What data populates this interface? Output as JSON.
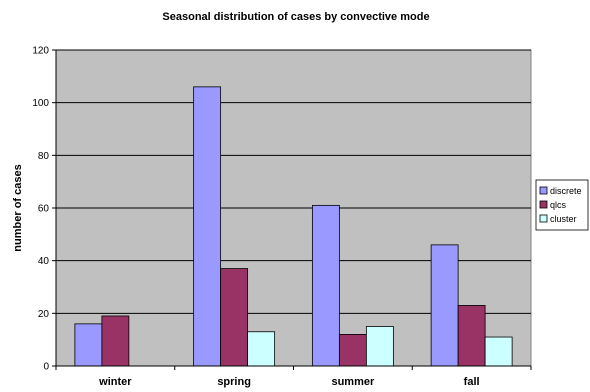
{
  "chart_data": {
    "type": "bar",
    "title": "Seasonal distribution of cases by convective mode",
    "xlabel": "",
    "ylabel": "number of cases",
    "categories": [
      "winter",
      "spring",
      "summer",
      "fall"
    ],
    "series": [
      {
        "name": "discrete",
        "values": [
          16,
          106,
          61,
          46
        ],
        "color": "#9999ff"
      },
      {
        "name": "qlcs",
        "values": [
          19,
          37,
          12,
          23
        ],
        "color": "#993366"
      },
      {
        "name": "cluster",
        "values": [
          0,
          13,
          15,
          11
        ],
        "color": "#ccffff"
      }
    ],
    "ylim": [
      0,
      120
    ],
    "yticks": [
      0,
      20,
      40,
      60,
      80,
      100,
      120
    ],
    "grid": true,
    "legend_position": "right",
    "colors": {
      "plot_background": "#c0c0c0",
      "gridline": "#000000"
    }
  }
}
